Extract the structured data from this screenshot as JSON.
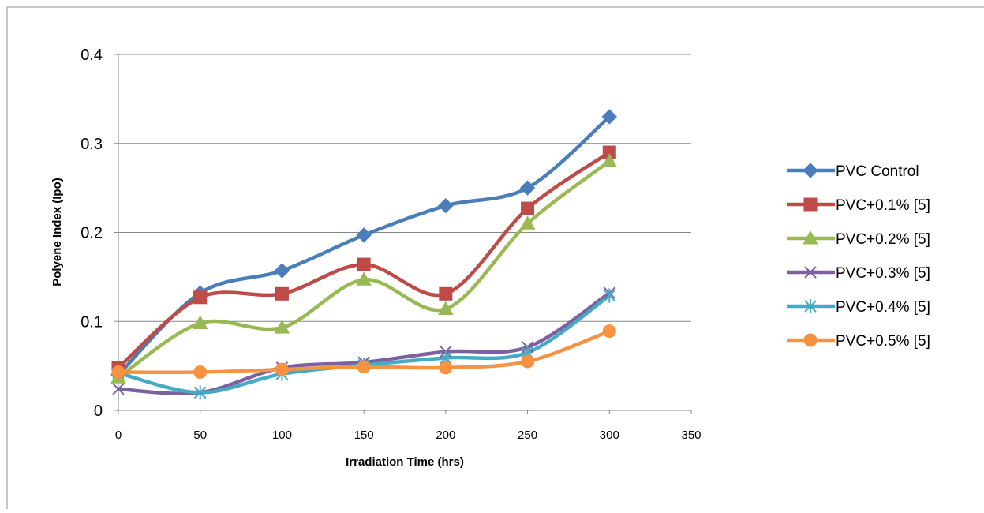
{
  "chart_data": {
    "type": "line",
    "title": "",
    "xlabel": "Irradiation Time (hrs)",
    "ylabel": "Polyene Index (Ipo)",
    "xlim": [
      0,
      350
    ],
    "ylim": [
      0,
      0.4
    ],
    "xticks": [
      0,
      50,
      100,
      150,
      200,
      250,
      300,
      350
    ],
    "yticks": [
      0,
      0.1,
      0.2,
      0.3,
      0.4
    ],
    "xtick_labels": [
      "0",
      "50",
      "100",
      "150",
      "200",
      "250",
      "300",
      "350"
    ],
    "ytick_labels": [
      "0",
      "0.1",
      "0.2",
      "0.3",
      "0.4"
    ],
    "grid": "horizontal",
    "smooth": true,
    "legend_position": "right",
    "x": [
      0,
      50,
      100,
      150,
      200,
      250,
      300
    ],
    "series": [
      {
        "name": "PVC Control",
        "color": "#4a7ebb",
        "marker": "diamond",
        "values": [
          0.04,
          0.132,
          0.157,
          0.197,
          0.23,
          0.25,
          0.33
        ]
      },
      {
        "name": "PVC+0.1% [5]",
        "color": "#be4b48",
        "marker": "square",
        "values": [
          0.048,
          0.127,
          0.131,
          0.164,
          0.131,
          0.227,
          0.29
        ]
      },
      {
        "name": "PVC+0.2% [5]",
        "color": "#98b954",
        "marker": "triangle",
        "values": [
          0.037,
          0.098,
          0.093,
          0.147,
          0.114,
          0.21,
          0.28
        ]
      },
      {
        "name": "PVC+0.3% [5]",
        "color": "#7d60a0",
        "marker": "x",
        "values": [
          0.024,
          0.02,
          0.048,
          0.054,
          0.066,
          0.071,
          0.132
        ]
      },
      {
        "name": "PVC+0.4% [5]",
        "color": "#46aac5",
        "marker": "star",
        "values": [
          0.042,
          0.02,
          0.041,
          0.051,
          0.059,
          0.065,
          0.129
        ]
      },
      {
        "name": "PVC+0.5% [5]",
        "color": "#f69240",
        "marker": "circle",
        "values": [
          0.043,
          0.043,
          0.046,
          0.049,
          0.048,
          0.055,
          0.089
        ]
      }
    ]
  }
}
